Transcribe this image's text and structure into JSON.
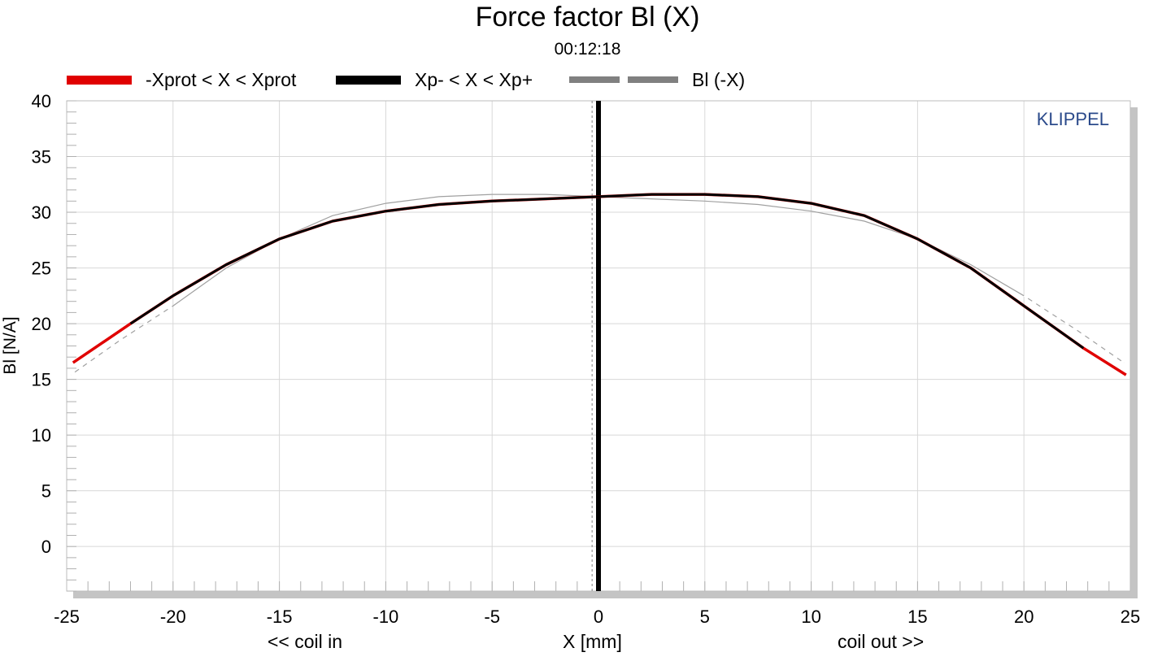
{
  "chart_data": {
    "type": "line",
    "title": "Force factor Bl (X)",
    "subtitle": "00:12:18",
    "xlabel": "X [mm]",
    "xlabel_left": "<< coil in",
    "xlabel_right": "coil out >>",
    "ylabel": "Bl [N/A]",
    "brand": "KLIPPEL",
    "xlim": [
      -25,
      25
    ],
    "ylim": [
      -4,
      40
    ],
    "x_ticks": [
      -25,
      -20,
      -15,
      -10,
      -5,
      0,
      5,
      10,
      15,
      20,
      25
    ],
    "y_ticks": [
      0,
      5,
      10,
      15,
      20,
      25,
      30,
      35,
      40
    ],
    "grid": true,
    "legend_position": "top",
    "legend": [
      {
        "label": "-Xprot < X < Xprot",
        "color": "#e00000",
        "style": "solid"
      },
      {
        "label": "Xp- < X < Xp+",
        "color": "#000000",
        "style": "solid"
      },
      {
        "label": "Bl (-X)",
        "color": "#808080",
        "style": "dashed"
      }
    ],
    "series": [
      {
        "name": "-Xprot < X < Xprot",
        "color": "#e00000",
        "x": [
          -24.7,
          -22,
          -20,
          -17.5,
          -15,
          -12.5,
          -10,
          -7.5,
          -5,
          -2.5,
          0,
          2.5,
          5,
          7.5,
          10,
          12.5,
          15,
          17.5,
          20,
          22.8,
          24.8
        ],
        "y": [
          16.5,
          20.0,
          22.5,
          25.3,
          27.6,
          29.2,
          30.1,
          30.7,
          31.0,
          31.2,
          31.4,
          31.6,
          31.6,
          31.4,
          30.8,
          29.7,
          27.6,
          25.0,
          21.6,
          17.8,
          15.4
        ]
      },
      {
        "name": "Xp- < X < Xp+",
        "color": "#000000",
        "x": [
          -22,
          -20,
          -17.5,
          -15,
          -12.5,
          -10,
          -7.5,
          -5,
          -2.5,
          0,
          2.5,
          5,
          7.5,
          10,
          12.5,
          15,
          17.5,
          20,
          22.8
        ],
        "y": [
          20.0,
          22.5,
          25.3,
          27.6,
          29.2,
          30.1,
          30.7,
          31.0,
          31.2,
          31.4,
          31.6,
          31.6,
          31.4,
          30.8,
          29.7,
          27.6,
          25.0,
          21.6,
          17.8
        ]
      },
      {
        "name": "Bl (-X)",
        "color": "#808080",
        "dashed_ranges": [
          [
            -25,
            -21
          ],
          [
            21,
            25
          ]
        ],
        "x": [
          -24.8,
          -22.5,
          -20,
          -17.5,
          -15,
          -12.5,
          -10,
          -7.5,
          -5,
          -2.5,
          0,
          2.5,
          5,
          7.5,
          10,
          12.5,
          15,
          17.5,
          20,
          22.5,
          24.7
        ],
        "y": [
          15.4,
          18.5,
          21.6,
          25.0,
          27.6,
          29.7,
          30.8,
          31.4,
          31.6,
          31.6,
          31.4,
          31.2,
          31.0,
          30.7,
          30.1,
          29.2,
          27.6,
          25.3,
          22.5,
          19.4,
          16.5
        ]
      }
    ],
    "markers": [
      {
        "name": "X = 0 (bold)",
        "x": 0.0,
        "color": "#000000"
      },
      {
        "name": "X = 0 (dotted)",
        "x": -0.3,
        "color": "#808080"
      }
    ]
  }
}
